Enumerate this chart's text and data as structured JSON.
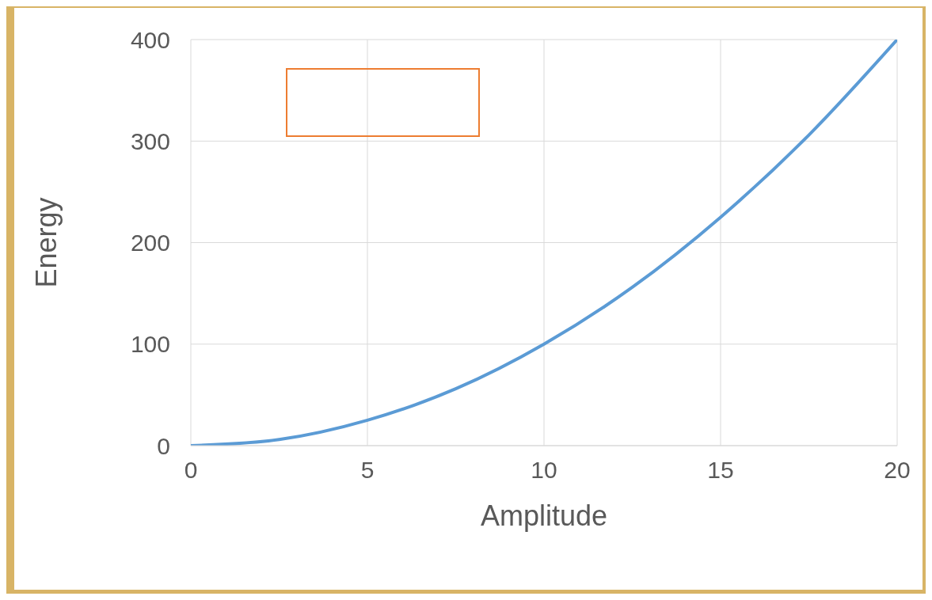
{
  "chart_data": {
    "type": "line",
    "xlabel": "Amplitude",
    "ylabel": "Energy",
    "x": [
      0,
      2.5,
      5,
      7.5,
      10,
      12.5,
      15,
      17.5,
      20
    ],
    "series": [
      {
        "color": "#5b9bd5",
        "values": [
          0,
          6,
          25,
          56,
          100,
          156,
          225,
          306,
          400
        ]
      }
    ],
    "xlim": [
      0,
      20
    ],
    "xticks": [
      0,
      5,
      10,
      15,
      20
    ],
    "ylim": [
      0,
      400
    ],
    "yticks": [
      0,
      100,
      200,
      300,
      400
    ],
    "grid": true,
    "marker": "none",
    "line_style": "solid"
  }
}
